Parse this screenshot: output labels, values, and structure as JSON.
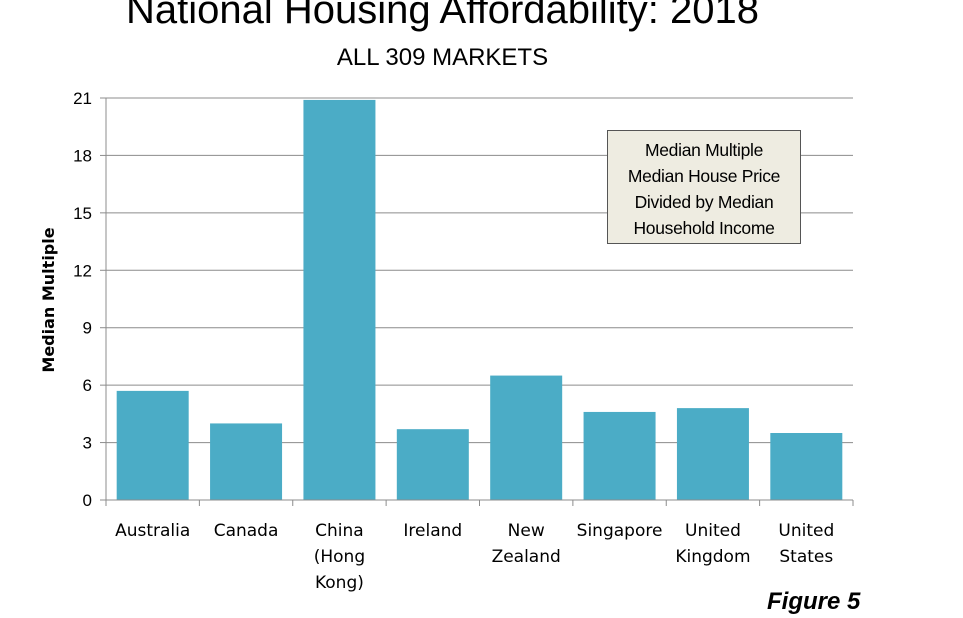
{
  "chart_data": {
    "type": "bar",
    "title": "National Housing Affordability: 2018",
    "subtitle": "ALL 309 MARKETS",
    "ylabel": "Median Multiple",
    "xlabel": "",
    "categories": [
      [
        "Australia"
      ],
      [
        "Canada"
      ],
      [
        "China",
        "(Hong",
        "Kong)"
      ],
      [
        "Ireland"
      ],
      [
        "New",
        "Zealand"
      ],
      [
        "Singapore"
      ],
      [
        "United",
        "Kingdom"
      ],
      [
        "United",
        "States"
      ]
    ],
    "values": [
      5.7,
      4.0,
      20.9,
      3.7,
      6.5,
      4.6,
      4.8,
      3.5
    ],
    "ylim": [
      0,
      21
    ],
    "yticks": [
      0,
      3,
      6,
      9,
      12,
      15,
      18,
      21
    ],
    "grid": true,
    "bar_color": "#4bacc6",
    "annotation": [
      "Median Multiple",
      "Median House Price",
      "Divided by Median",
      "Household Income"
    ],
    "annotation_placement": "top-right"
  },
  "figure_label": "Figure 5"
}
